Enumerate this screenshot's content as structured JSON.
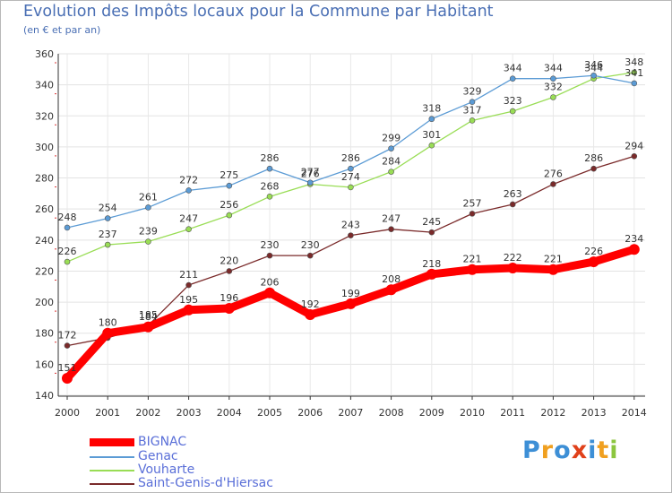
{
  "header": {
    "title": "Evolution des Impôts locaux pour la Commune par Habitant",
    "subtitle": "(en € et par an)"
  },
  "chart_data": {
    "type": "line",
    "title": "Evolution des Impôts locaux pour la Commune par Habitant",
    "subtitle": "(en € et par an)",
    "xlabel": "",
    "ylabel": "",
    "categories": [
      "2000",
      "2001",
      "2002",
      "2003",
      "2004",
      "2005",
      "2006",
      "2007",
      "2008",
      "2009",
      "2010",
      "2011",
      "2012",
      "2013",
      "2014"
    ],
    "y_ticks": [
      140,
      160,
      180,
      200,
      220,
      240,
      260,
      280,
      300,
      320,
      340,
      360
    ],
    "ylim": [
      140,
      360
    ],
    "grid": true,
    "legend_position": "bottom-left",
    "series": [
      {
        "name": "Saint-Genis-d'Hiersac",
        "color": "#7a2a2a",
        "values": [
          172,
          177,
          185,
          211,
          220,
          230,
          230,
          243,
          247,
          245,
          257,
          263,
          276,
          286,
          294
        ],
        "labels": [
          "172",
          "",
          "185",
          "211",
          "220",
          "230",
          "230",
          "243",
          "247",
          "245",
          "257",
          "263",
          "276",
          "286",
          "294"
        ]
      },
      {
        "name": "Vouharte",
        "color": "#99dd55",
        "values": [
          226,
          237,
          239,
          247,
          256,
          268,
          276,
          274,
          284,
          301,
          317,
          323,
          332,
          344,
          348
        ],
        "labels": [
          "226",
          "237",
          "239",
          "247",
          "256",
          "268",
          "276",
          "274",
          "284",
          "301",
          "317",
          "323",
          "332",
          "344",
          "348"
        ]
      },
      {
        "name": "Genac",
        "color": "#5b9bd5",
        "values": [
          248,
          254,
          261,
          272,
          275,
          286,
          277,
          286,
          299,
          318,
          329,
          344,
          344,
          346,
          341
        ],
        "labels": [
          "248",
          "254",
          "261",
          "272",
          "275",
          "286",
          "277",
          "286",
          "299",
          "318",
          "329",
          "344",
          "344",
          "346",
          "341"
        ]
      },
      {
        "name": "BIGNAC",
        "color": "#ff0000",
        "values": [
          151,
          180,
          184,
          195,
          196,
          206,
          192,
          199,
          208,
          218,
          221,
          222,
          221,
          226,
          234
        ],
        "labels": [
          "151",
          "180",
          "184",
          "195",
          "196",
          "206",
          "192",
          "199",
          "208",
          "218",
          "221",
          "222",
          "221",
          "226",
          "234"
        ]
      }
    ]
  },
  "legend": {
    "items": [
      {
        "label": "BIGNAC",
        "color": "#ff0000"
      },
      {
        "label": "Genac",
        "color": "#5b9bd5"
      },
      {
        "label": "Vouharte",
        "color": "#99dd55"
      },
      {
        "label": "Saint-Genis-d'Hiersac",
        "color": "#7a2a2a"
      }
    ]
  },
  "logo": {
    "letters": [
      "P",
      "r",
      "o",
      "x",
      "i",
      "t",
      "i"
    ],
    "colors": [
      "#3d8fd6",
      "#f0a020",
      "#3d8fd6",
      "#e0401a",
      "#3d8fd6",
      "#f0a020",
      "#8cc63f"
    ]
  }
}
